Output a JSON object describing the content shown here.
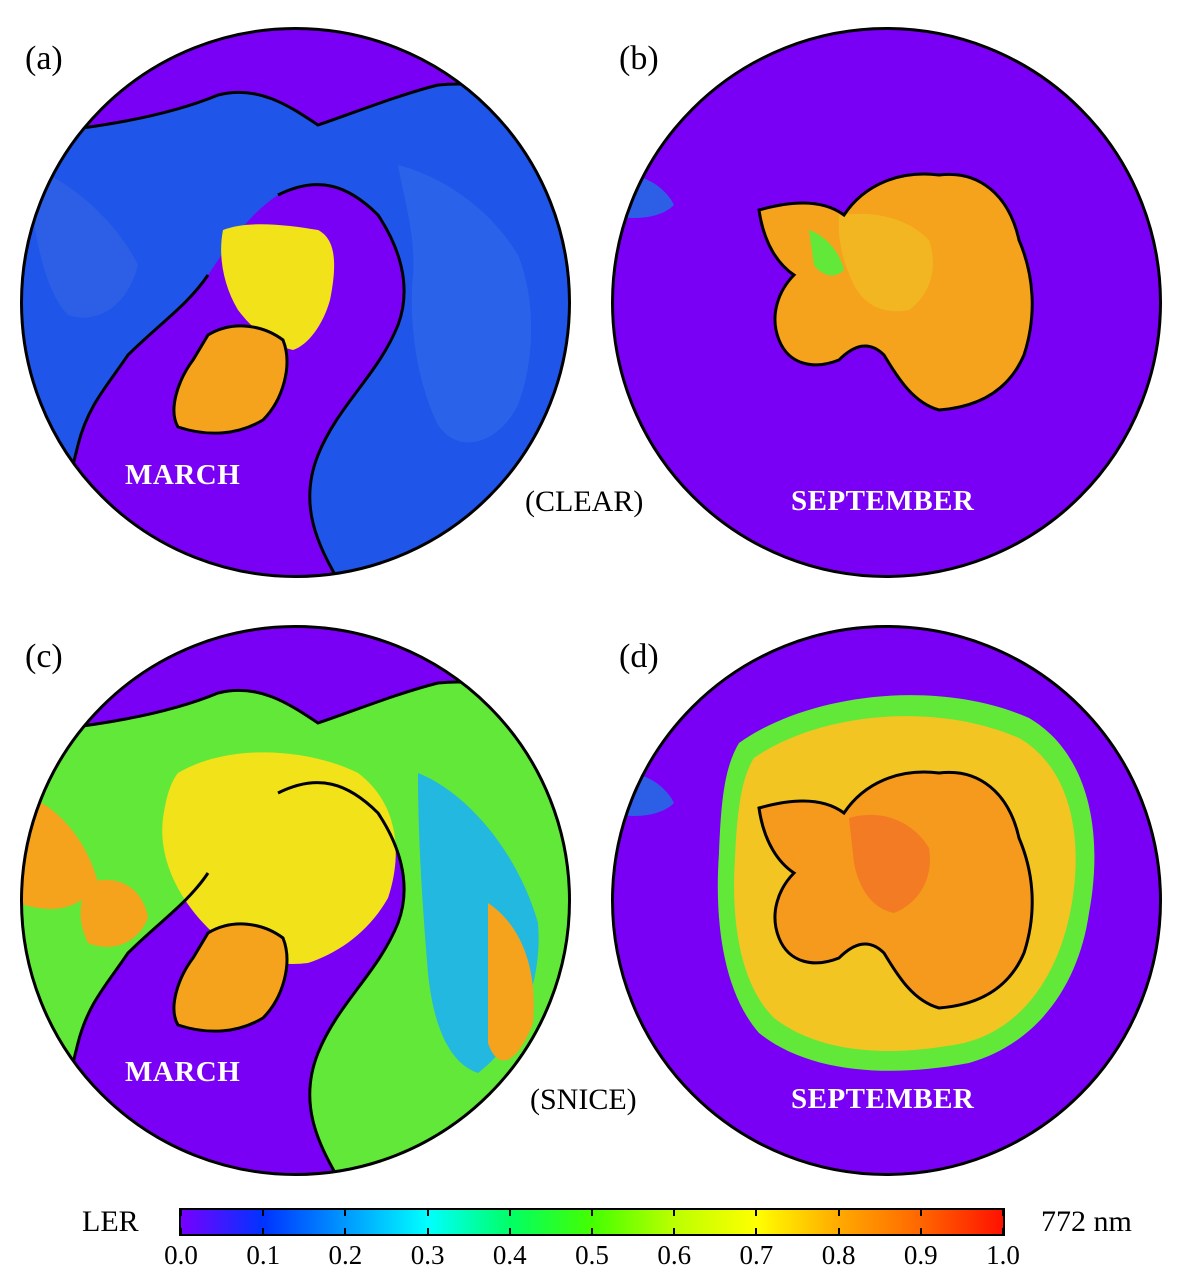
{
  "panels": [
    {
      "label": "(a)",
      "month": "MARCH"
    },
    {
      "label": "(b)",
      "month": "SEPTEMBER"
    },
    {
      "label": "(c)",
      "month": "MARCH"
    },
    {
      "label": "(d)",
      "month": "SEPTEMBER"
    }
  ],
  "row_labels": {
    "top": "(CLEAR)",
    "bottom": "(SNICE)"
  },
  "colorbar": {
    "left_label": "LER",
    "right_label": "772 nm",
    "ticks": [
      "0.0",
      "0.1",
      "0.2",
      "0.3",
      "0.4",
      "0.5",
      "0.6",
      "0.7",
      "0.8",
      "0.9",
      "1.0"
    ],
    "range": [
      0.0,
      1.0
    ],
    "stops": [
      "#7700ff",
      "#0033ff",
      "#0099ff",
      "#00ffff",
      "#00ff66",
      "#44ff00",
      "#bbff00",
      "#ffff00",
      "#ffaa00",
      "#ff6600",
      "#ff1100"
    ]
  },
  "colors": {
    "ocean": "#7a00f5",
    "land_low": "#1f55e8",
    "land_mid": "#22b8e0",
    "ice_yellow": "#f2e21a",
    "ice_orange": "#f5a21c",
    "ice_green": "#62e838"
  }
}
